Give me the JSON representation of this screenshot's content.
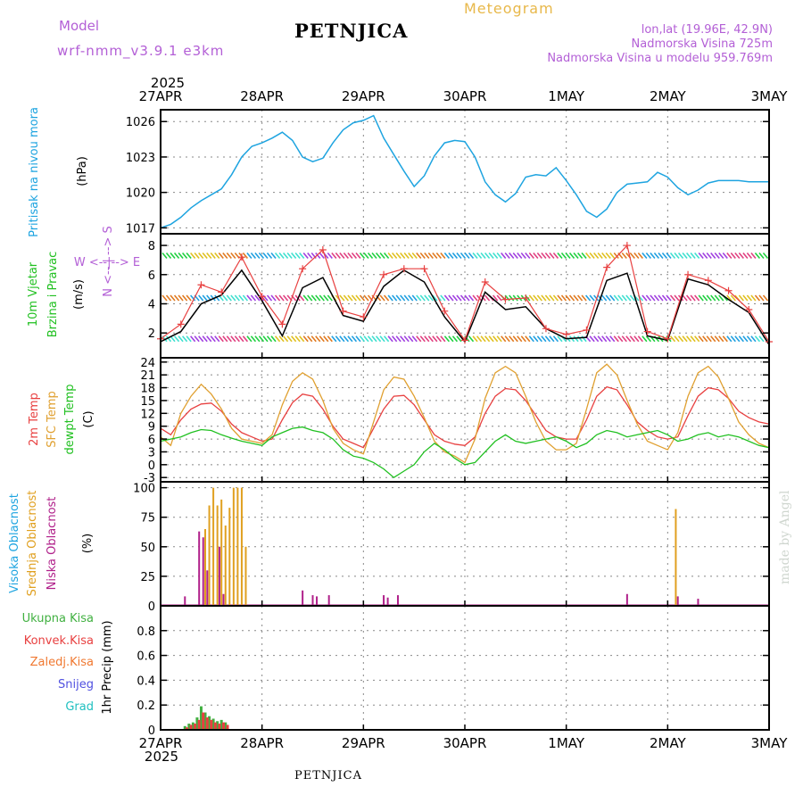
{
  "header": {
    "model_label": "Model",
    "model_name": "wrf-nmm_v3.9.1 e3km",
    "station": "PETNJICA",
    "meteogram": "Meteogram",
    "lonlat": "lon,lat (19.96E, 42.9N)",
    "elevation": "Nadmorska Visina 725m",
    "model_elevation": "Nadmorska Visina u modelu 959.769m",
    "year_top": "2025",
    "year_bottom": "2025",
    "bottom_station": "PETNJICA",
    "credit": "made by Angel"
  },
  "colors": {
    "pressure": "#1ea4e0",
    "t2m": "#e84040",
    "sfc": "#e0a030",
    "dewpt": "#20c020",
    "wind_black": "#000000",
    "cloud_high": "#1ea4e0",
    "cloud_mid": "#e0a020",
    "cloud_low": "#b0208a",
    "precip_total": "#40b040",
    "precip_conv": "#e84040",
    "purple": "#b35fd6"
  },
  "chart_data": [
    {
      "type": "line",
      "panel": "pressure",
      "title": "Pritisak na nivou mora",
      "ylabel": "(hPa)",
      "ylim": [
        1016.5,
        1027
      ],
      "yticks": [
        1017,
        1020,
        1023,
        1026
      ],
      "x_categories": [
        "27APR",
        "28APR",
        "29APR",
        "30APR",
        "1MAY",
        "2MAY",
        "3MAY"
      ],
      "series": [
        {
          "name": "Pritisak na nivou mora",
          "x": [
            0,
            0.1,
            0.2,
            0.3,
            0.4,
            0.5,
            0.6,
            0.7,
            0.8,
            0.9,
            1.0,
            1.1,
            1.2,
            1.3,
            1.4,
            1.5,
            1.6,
            1.7,
            1.8,
            1.9,
            2.0,
            2.1,
            2.2,
            2.3,
            2.4,
            2.5,
            2.6,
            2.7,
            2.8,
            2.9,
            3.0,
            3.1,
            3.2,
            3.3,
            3.4,
            3.5,
            3.6,
            3.7,
            3.8,
            3.9,
            4.0,
            4.1,
            4.2,
            4.3,
            4.4,
            4.5,
            4.6,
            4.7,
            4.8,
            4.9,
            5.0,
            5.1,
            5.2,
            5.3,
            5.4,
            5.5,
            5.6,
            5.7,
            5.8,
            5.9,
            6.0
          ],
          "values": [
            1017.0,
            1017.3,
            1017.9,
            1018.7,
            1019.3,
            1019.8,
            1020.3,
            1021.5,
            1023.0,
            1023.9,
            1024.2,
            1024.6,
            1025.1,
            1024.4,
            1023.0,
            1022.6,
            1022.9,
            1024.2,
            1025.3,
            1025.9,
            1026.1,
            1026.5,
            1024.6,
            1023.2,
            1021.8,
            1020.5,
            1021.4,
            1023.1,
            1024.2,
            1024.4,
            1024.3,
            1023.0,
            1020.9,
            1019.8,
            1019.2,
            1019.9,
            1021.3,
            1021.5,
            1021.4,
            1022.1,
            1021.0,
            1019.8,
            1018.4,
            1017.9,
            1018.6,
            1020.0,
            1020.7,
            1020.8,
            1020.9,
            1021.7,
            1021.3,
            1020.4,
            1019.8,
            1020.2,
            1020.8,
            1021.0,
            1021.0,
            1021.0,
            1020.9,
            1020.9,
            1020.9
          ]
        }
      ]
    },
    {
      "type": "line",
      "panel": "wind",
      "title": "10m Vjetar Brzina i Pravac",
      "ylabel": "(m/s)",
      "compass": [
        "W",
        "E",
        "N",
        "S"
      ],
      "ylim": [
        0.3,
        8.8
      ],
      "yticks": [
        2,
        4,
        6,
        8
      ],
      "series": [
        {
          "name": "speed",
          "x": [
            0,
            0.2,
            0.4,
            0.6,
            0.8,
            1.0,
            1.2,
            1.4,
            1.6,
            1.8,
            2.0,
            2.2,
            2.4,
            2.6,
            2.8,
            3.0,
            3.2,
            3.4,
            3.6,
            3.8,
            4.0,
            4.2,
            4.4,
            4.6,
            4.8,
            5.0,
            5.2,
            5.4,
            5.6,
            5.8,
            6.0
          ],
          "values": [
            1.4,
            2.1,
            4.0,
            4.6,
            6.3,
            4.2,
            1.8,
            5.1,
            5.8,
            3.2,
            2.8,
            5.2,
            6.3,
            5.5,
            3.1,
            1.4,
            4.8,
            3.6,
            3.8,
            2.3,
            1.6,
            1.7,
            5.6,
            6.1,
            1.8,
            1.5,
            5.7,
            5.3,
            4.3,
            3.4,
            1.2
          ]
        },
        {
          "name": "gust",
          "x": [
            0,
            0.2,
            0.4,
            0.6,
            0.8,
            1.0,
            1.2,
            1.4,
            1.6,
            1.8,
            2.0,
            2.2,
            2.4,
            2.6,
            2.8,
            3.0,
            3.2,
            3.4,
            3.6,
            3.8,
            4.0,
            4.2,
            4.4,
            4.6,
            4.8,
            5.0,
            5.2,
            5.4,
            5.6,
            5.8,
            6.0
          ],
          "values": [
            1.6,
            2.6,
            5.3,
            4.8,
            7.2,
            4.5,
            2.6,
            6.4,
            7.7,
            3.5,
            3.1,
            6.0,
            6.4,
            6.4,
            3.5,
            1.5,
            5.5,
            4.3,
            4.4,
            2.3,
            1.9,
            2.2,
            6.5,
            8.0,
            2.1,
            1.6,
            6.0,
            5.6,
            4.9,
            3.6,
            1.4
          ]
        }
      ]
    },
    {
      "type": "line",
      "panel": "temperature",
      "ylabel": "(C)",
      "ylim": [
        -4,
        25
      ],
      "yticks": [
        -3,
        0,
        3,
        6,
        9,
        12,
        15,
        18,
        21,
        24
      ],
      "series": [
        {
          "name": "2m Temp",
          "x": [
            0,
            0.1,
            0.2,
            0.3,
            0.4,
            0.5,
            0.6,
            0.7,
            0.8,
            0.9,
            1.0,
            1.1,
            1.2,
            1.3,
            1.4,
            1.5,
            1.6,
            1.7,
            1.8,
            1.9,
            2.0,
            2.1,
            2.2,
            2.3,
            2.4,
            2.5,
            2.6,
            2.7,
            2.8,
            2.9,
            3.0,
            3.1,
            3.2,
            3.3,
            3.4,
            3.5,
            3.6,
            3.7,
            3.8,
            3.9,
            4.0,
            4.1,
            4.2,
            4.3,
            4.4,
            4.5,
            4.6,
            4.7,
            4.8,
            4.9,
            5.0,
            5.1,
            5.2,
            5.3,
            5.4,
            5.5,
            5.6,
            5.7,
            5.8,
            5.9,
            6.0
          ],
          "values": [
            8.5,
            7.0,
            10.5,
            13.0,
            14.2,
            14.4,
            12.5,
            9.5,
            7.5,
            6.5,
            5.5,
            6.0,
            10.5,
            14.5,
            16.5,
            16.0,
            13.0,
            9.0,
            6.0,
            5.0,
            4.0,
            8.5,
            13.0,
            16.0,
            16.2,
            14.0,
            10.5,
            7.0,
            5.5,
            4.8,
            4.5,
            6.5,
            12.0,
            16.0,
            17.8,
            17.5,
            15.0,
            11.5,
            8.0,
            6.5,
            6.0,
            6.0,
            10.5,
            16.0,
            18.2,
            17.5,
            14.0,
            10.0,
            8.0,
            6.5,
            6.0,
            6.5,
            11.5,
            16.0,
            18.0,
            17.5,
            15.5,
            12.5,
            11.0,
            10.0,
            9.5
          ]
        },
        {
          "name": "SFC Temp",
          "x": [
            0,
            0.1,
            0.2,
            0.3,
            0.4,
            0.5,
            0.6,
            0.7,
            0.8,
            0.9,
            1.0,
            1.1,
            1.2,
            1.3,
            1.4,
            1.5,
            1.6,
            1.7,
            1.8,
            1.9,
            2.0,
            2.1,
            2.2,
            2.3,
            2.4,
            2.5,
            2.6,
            2.7,
            2.8,
            2.9,
            3.0,
            3.1,
            3.2,
            3.3,
            3.4,
            3.5,
            3.6,
            3.7,
            3.8,
            3.9,
            4.0,
            4.1,
            4.2,
            4.3,
            4.4,
            4.5,
            4.6,
            4.7,
            4.8,
            4.9,
            5.0,
            5.1,
            5.2,
            5.3,
            5.4,
            5.5,
            5.6,
            5.7,
            5.8,
            5.9,
            6.0
          ],
          "values": [
            6.5,
            4.5,
            12.0,
            16.0,
            18.8,
            16.5,
            13.0,
            8.5,
            6.0,
            5.5,
            5.0,
            7.0,
            14.0,
            19.5,
            21.5,
            20.0,
            15.0,
            8.5,
            5.0,
            3.5,
            2.5,
            10.0,
            17.5,
            20.5,
            20.0,
            16.0,
            11.0,
            5.5,
            3.0,
            2.0,
            0.5,
            6.0,
            15.5,
            21.5,
            23.0,
            21.5,
            16.0,
            10.0,
            5.5,
            3.5,
            3.5,
            5.0,
            13.0,
            21.5,
            23.5,
            21.0,
            15.0,
            9.5,
            5.5,
            4.5,
            3.5,
            7.5,
            16.0,
            21.5,
            23.0,
            20.5,
            15.5,
            10.0,
            7.0,
            5.0,
            4.0
          ]
        },
        {
          "name": "dewpt Temp",
          "x": [
            0,
            0.1,
            0.2,
            0.3,
            0.4,
            0.5,
            0.6,
            0.7,
            0.8,
            0.9,
            1.0,
            1.1,
            1.2,
            1.3,
            1.4,
            1.5,
            1.6,
            1.7,
            1.8,
            1.9,
            2.0,
            2.1,
            2.2,
            2.3,
            2.4,
            2.5,
            2.6,
            2.7,
            2.8,
            2.9,
            3.0,
            3.1,
            3.2,
            3.3,
            3.4,
            3.5,
            3.6,
            3.7,
            3.8,
            3.9,
            4.0,
            4.1,
            4.2,
            4.3,
            4.4,
            4.5,
            4.6,
            4.7,
            4.8,
            4.9,
            5.0,
            5.1,
            5.2,
            5.3,
            5.4,
            5.5,
            5.6,
            5.7,
            5.8,
            5.9,
            6.0
          ],
          "values": [
            5.5,
            6.0,
            6.5,
            7.5,
            8.2,
            8.0,
            7.0,
            6.2,
            5.5,
            5.0,
            4.5,
            6.5,
            7.5,
            8.5,
            8.8,
            8.0,
            7.5,
            6.0,
            3.5,
            2.0,
            1.5,
            0.5,
            -1.0,
            -3.0,
            -1.5,
            0.0,
            3.0,
            5.0,
            3.5,
            1.5,
            0.0,
            0.5,
            3.0,
            5.5,
            7.0,
            5.5,
            5.0,
            5.5,
            6.0,
            6.5,
            5.5,
            4.0,
            5.0,
            7.0,
            8.0,
            7.5,
            6.5,
            7.0,
            7.5,
            8.0,
            7.0,
            5.5,
            6.0,
            7.0,
            7.5,
            6.5,
            7.0,
            6.5,
            5.5,
            4.5,
            4.0
          ]
        }
      ],
      "legend": [
        "2m Temp",
        "SFC Temp",
        "dewpt Temp"
      ]
    },
    {
      "type": "bar",
      "panel": "clouds",
      "ylabel": "(%)",
      "ylim": [
        0,
        105
      ],
      "yticks": [
        0,
        25,
        50,
        75,
        100
      ],
      "series": [
        {
          "name": "Srednja Oblacnost",
          "x": [
            0.44,
            0.48,
            0.52,
            0.56,
            0.6,
            0.64,
            0.68,
            0.72,
            0.76,
            0.8,
            0.84,
            5.08
          ],
          "values": [
            65,
            85,
            100,
            85,
            90,
            68,
            83,
            100,
            100,
            100,
            50,
            82
          ]
        },
        {
          "name": "Niska Oblacnost",
          "x": [
            0.24,
            0.38,
            0.42,
            0.46,
            0.58,
            0.62,
            1.4,
            1.5,
            1.54,
            1.66,
            2.2,
            2.24,
            2.34,
            4.6,
            5.1,
            5.3
          ],
          "values": [
            8,
            63,
            58,
            30,
            50,
            10,
            13,
            9,
            8,
            9,
            9,
            7,
            9,
            10,
            8,
            6
          ]
        },
        {
          "name": "Visoka Oblacnost",
          "x": [],
          "values": []
        }
      ],
      "legend": [
        "Visoka Oblacnost",
        "Srednja Oblacnost",
        "Niska Oblacnost"
      ]
    },
    {
      "type": "bar",
      "panel": "precipitation",
      "ylabel": "1hr Precip (mm)",
      "ylim": [
        0,
        1.0
      ],
      "yticks": [
        0,
        0.2,
        0.4,
        0.6,
        0.8
      ],
      "series": [
        {
          "name": "Ukupna Kisa",
          "x": [
            0.24,
            0.28,
            0.32,
            0.36,
            0.4,
            0.44,
            0.48,
            0.52,
            0.56,
            0.6,
            0.64
          ],
          "values": [
            0.03,
            0.05,
            0.06,
            0.1,
            0.19,
            0.14,
            0.11,
            0.09,
            0.07,
            0.08,
            0.06
          ]
        },
        {
          "name": "Konvek.Kisa",
          "x": [
            0.26,
            0.3,
            0.34,
            0.38,
            0.42,
            0.46,
            0.5,
            0.54,
            0.58,
            0.62,
            0.66
          ],
          "values": [
            0.02,
            0.04,
            0.05,
            0.08,
            0.14,
            0.1,
            0.08,
            0.06,
            0.05,
            0.06,
            0.04
          ]
        },
        {
          "name": "Zaledj.Kisa",
          "x": [],
          "values": []
        },
        {
          "name": "Snijeg",
          "x": [],
          "values": []
        },
        {
          "name": "Grad",
          "x": [],
          "values": []
        }
      ],
      "legend": [
        "Ukupna Kisa",
        "Konvek.Kisa",
        "Zaledj.Kisa",
        "Snijeg",
        "Grad"
      ]
    }
  ],
  "panel_labels": {
    "pressure_a": "Pritisak na nivou mora",
    "pressure_unit": "(hPa)",
    "wind_a": "10m Vjetar",
    "wind_b": "Brzina i Pravac",
    "wind_unit": "(m/s)",
    "wind_compass_row": "W  <--|-->  E",
    "wind_compass_side": "N <-- | --> S",
    "temp_a": "2m Temp",
    "temp_b": "SFC Temp",
    "temp_c": "dewpt Temp",
    "temp_unit": "(C)",
    "cloud_a": "Visoka Oblacnost",
    "cloud_b": "Srednja Oblacnost",
    "cloud_c": "Niska Oblacnost",
    "cloud_unit": "(%)",
    "precip_a": "Ukupna Kisa",
    "precip_b": "Konvek.Kisa",
    "precip_c": "Zaledj.Kisa",
    "precip_d": "Snijeg",
    "precip_e": "Grad",
    "precip_unit": "1hr Precip (mm)"
  }
}
